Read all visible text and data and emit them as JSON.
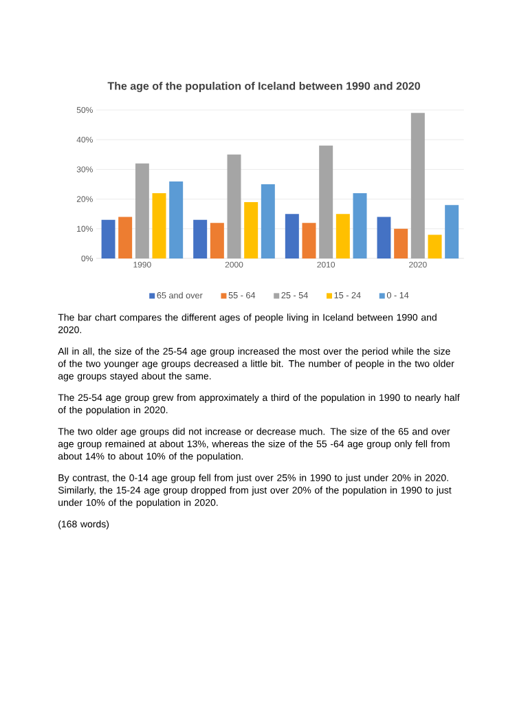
{
  "chart_data": {
    "type": "bar",
    "title": "The age of the population of Iceland between 1990 and 2020",
    "categories": [
      "1990",
      "2000",
      "2010",
      "2020"
    ],
    "series": [
      {
        "name": "65 and over",
        "color": "#4472c4",
        "values": [
          13,
          13,
          15,
          14
        ]
      },
      {
        "name": "55 - 64",
        "color": "#ed7d31",
        "values": [
          14,
          12,
          12,
          10
        ]
      },
      {
        "name": "25 - 54",
        "color": "#a5a5a5",
        "values": [
          32,
          35,
          38,
          49
        ]
      },
      {
        "name": "15 - 24",
        "color": "#ffc000",
        "values": [
          22,
          19,
          15,
          8
        ]
      },
      {
        "name": "0 - 14",
        "color": "#5b9bd5",
        "values": [
          26,
          25,
          22,
          18
        ]
      }
    ],
    "ylim": [
      0,
      50
    ],
    "yticks": [
      {
        "value": 0,
        "label": "0%"
      },
      {
        "value": 10,
        "label": "10%"
      },
      {
        "value": 20,
        "label": "20%"
      },
      {
        "value": 30,
        "label": "30%"
      },
      {
        "value": 40,
        "label": "40%"
      },
      {
        "value": 50,
        "label": "50%"
      }
    ],
    "grid": "y",
    "legend": "bottom",
    "annotations": [
      "The bar chart compares the different ages of people living in Iceland between 1990 and 2020.",
      "All in all, the size of the 25-54 age group increased the most over the period while the size of the two younger age groups decreased a little bit. The number of people in the two older age groups stayed about the same.",
      "The 25-54 age group grew from approximately a third of the population in 1990 to nearly half of the population in 2020.",
      "The two older age groups did not increase or decrease much. The size of the 65 and over age group remained at about 13%, whereas the size of the 55 -64 age group only fell from about 14% to about 10% of the population.",
      "By contrast, the 0-14 age group fell from just over 25% in 1990 to just under 20% in 2020. Similarly, the 15-24 age group dropped from just over 20% of the population in 1990 to just under 10% of the population in 2020.",
      "(168 words)"
    ]
  }
}
